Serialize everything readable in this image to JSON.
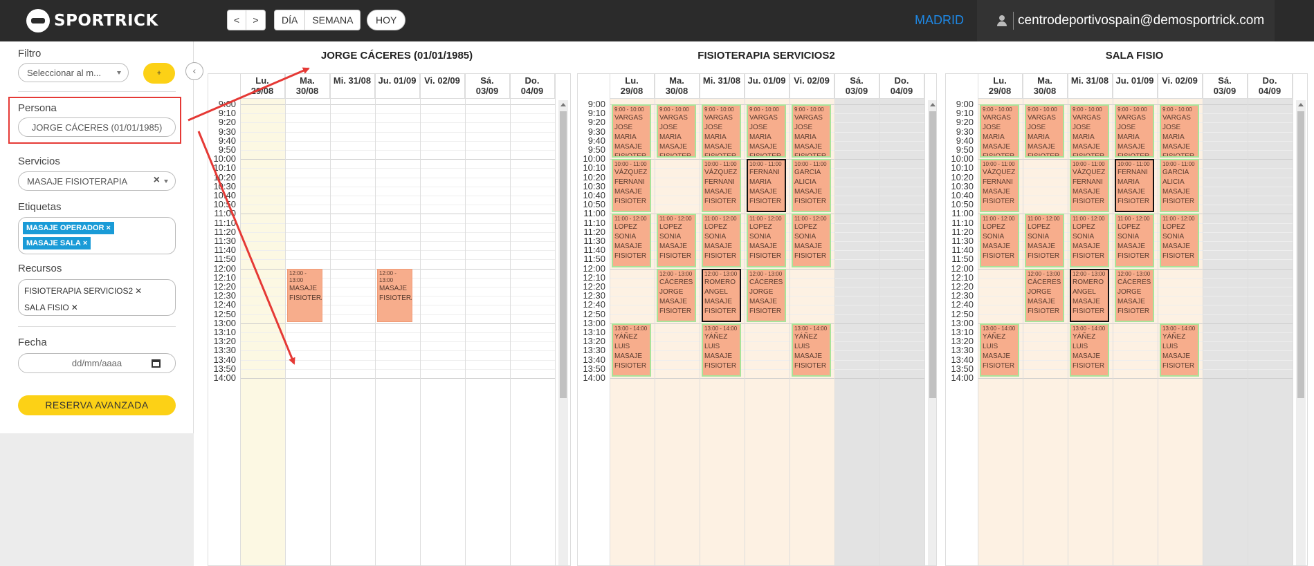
{
  "header": {
    "brand": "SPORTRICK",
    "prev_label": "<",
    "next_label": ">",
    "day_label": "DÍA",
    "week_label": "SEMANA",
    "today_label": "HOY",
    "city": "MADRID",
    "user_email": "centrodeportivospain@demosportrick.com"
  },
  "sidebar": {
    "filter_label": "Filtro",
    "filter_placeholder": "Seleccionar al m...",
    "add_label": "+",
    "persona_label": "Persona",
    "persona_value": "JORGE CÁCERES (01/01/1985)",
    "services_label": "Servicios",
    "services_value": "MASAJE FISIOTERAPIA",
    "tags_label": "Etiquetas",
    "tags": [
      "MASAJE OPERADOR",
      "MASAJE SALA"
    ],
    "resources_label": "Recursos",
    "resources": [
      "FISIOTERAPIA SERVICIOS2",
      "SALA FISIO"
    ],
    "date_label": "Fecha",
    "date_placeholder": "dd/mm/aaaa",
    "reserve_label": "RESERVA AVANZADA",
    "collapse_label": "‹"
  },
  "times": [
    "9:00",
    "9:10",
    "9:20",
    "9:30",
    "9:40",
    "9:50",
    "10:00",
    "10:10",
    "10:20",
    "10:30",
    "10:40",
    "10:50",
    "11:00",
    "11:10",
    "11:20",
    "11:30",
    "11:40",
    "11:50",
    "12:00",
    "12:10",
    "12:20",
    "12:30",
    "12:40",
    "12:50",
    "13:00",
    "13:10",
    "13:20",
    "13:30",
    "13:40",
    "13:50",
    "14:00"
  ],
  "calendars": [
    {
      "title": "JORGE CÁCERES (01/01/1985)",
      "days": [
        [
          "Lu.",
          "29/08"
        ],
        [
          "Ma.",
          "30/08"
        ],
        [
          "Mi. 31/08",
          ""
        ],
        [
          "Ju. 01/09",
          ""
        ],
        [
          "Vi. 02/09",
          ""
        ],
        [
          "Sá.",
          "03/09"
        ],
        [
          "Do.",
          "04/09"
        ]
      ],
      "events": [
        {
          "day": 1,
          "start": 18,
          "len": 6,
          "time": "12:00 - 13:00",
          "lines": [
            "MASAJE",
            "FISIOTERA"
          ],
          "style": ""
        },
        {
          "day": 3,
          "start": 18,
          "len": 6,
          "time": "12:00 - 13:00",
          "lines": [
            "MASAJE",
            "FISIOTERA"
          ],
          "style": ""
        }
      ]
    },
    {
      "title": "FISIOTERAPIA SERVICIOS2",
      "days": [
        [
          "Lu.",
          "29/08"
        ],
        [
          "Ma.",
          "30/08"
        ],
        [
          "Mi. 31/08",
          ""
        ],
        [
          "Ju. 01/09",
          ""
        ],
        [
          "Vi. 02/09",
          ""
        ],
        [
          "Sá.",
          "03/09"
        ],
        [
          "Do.",
          "04/09"
        ]
      ],
      "events": [
        {
          "day": 0,
          "start": 0,
          "len": 6,
          "time": "9:00 - 10:00",
          "lines": [
            "VARGAS",
            "JOSE",
            "MARIA",
            "MASAJE",
            "FISIOTER"
          ],
          "style": "green"
        },
        {
          "day": 1,
          "start": 0,
          "len": 6,
          "time": "9:00 - 10:00",
          "lines": [
            "VARGAS",
            "JOSE",
            "MARIA",
            "MASAJE",
            "FISIOTER"
          ],
          "style": "green"
        },
        {
          "day": 2,
          "start": 0,
          "len": 6,
          "time": "9:00 - 10:00",
          "lines": [
            "VARGAS",
            "JOSE",
            "MARIA",
            "MASAJE",
            "FISIOTER"
          ],
          "style": "green"
        },
        {
          "day": 3,
          "start": 0,
          "len": 6,
          "time": "9:00 - 10:00",
          "lines": [
            "VARGAS",
            "JOSE",
            "MARIA",
            "MASAJE",
            "FISIOTER"
          ],
          "style": "green"
        },
        {
          "day": 4,
          "start": 0,
          "len": 6,
          "time": "9:00 - 10:00",
          "lines": [
            "VARGAS",
            "JOSE",
            "MARIA",
            "MASAJE",
            "FISIOTER"
          ],
          "style": "green"
        },
        {
          "day": 0,
          "start": 6,
          "len": 6,
          "time": "10:00 - 11:00",
          "lines": [
            "VÁZQUEZ",
            "FERNANI",
            "MASAJE",
            "FISIOTER"
          ],
          "style": "green"
        },
        {
          "day": 2,
          "start": 6,
          "len": 6,
          "time": "10:00 - 11:00",
          "lines": [
            "VÁZQUEZ",
            "FERNANI",
            "MASAJE",
            "FISIOTER"
          ],
          "style": "green"
        },
        {
          "day": 3,
          "start": 6,
          "len": 6,
          "time": "10:00 - 11:00",
          "lines": [
            "FERNANI",
            "MARIA",
            "MASAJE",
            "FISIOTER"
          ],
          "style": "bold"
        },
        {
          "day": 4,
          "start": 6,
          "len": 6,
          "time": "10:00 - 11:00",
          "lines": [
            "GARCIA",
            "ALICIA",
            "MASAJE",
            "FISIOTER"
          ],
          "style": "green"
        },
        {
          "day": 0,
          "start": 12,
          "len": 6,
          "time": "11:00 - 12:00",
          "lines": [
            "LOPEZ",
            "SONIA",
            "MASAJE",
            "FISIOTER"
          ],
          "style": "green"
        },
        {
          "day": 1,
          "start": 12,
          "len": 6,
          "time": "11:00 - 12:00",
          "lines": [
            "LOPEZ",
            "SONIA",
            "MASAJE",
            "FISIOTER"
          ],
          "style": "green"
        },
        {
          "day": 2,
          "start": 12,
          "len": 6,
          "time": "11:00 - 12:00",
          "lines": [
            "LOPEZ",
            "SONIA",
            "MASAJE",
            "FISIOTER"
          ],
          "style": "green"
        },
        {
          "day": 3,
          "start": 12,
          "len": 6,
          "time": "11:00 - 12:00",
          "lines": [
            "LOPEZ",
            "SONIA",
            "MASAJE",
            "FISIOTER"
          ],
          "style": "green"
        },
        {
          "day": 4,
          "start": 12,
          "len": 6,
          "time": "11:00 - 12:00",
          "lines": [
            "LOPEZ",
            "SONIA",
            "MASAJE",
            "FISIOTER"
          ],
          "style": "green"
        },
        {
          "day": 1,
          "start": 18,
          "len": 6,
          "time": "12:00 - 13:00",
          "lines": [
            "CÁCERES",
            "JORGE",
            "MASAJE",
            "FISIOTER"
          ],
          "style": "green"
        },
        {
          "day": 2,
          "start": 18,
          "len": 6,
          "time": "12:00 - 13:00",
          "lines": [
            "ROMERO",
            "ANGEL",
            "MASAJE",
            "FISIOTER"
          ],
          "style": "bold"
        },
        {
          "day": 3,
          "start": 18,
          "len": 6,
          "time": "12:00 - 13:00",
          "lines": [
            "CÁCERES",
            "JORGE",
            "MASAJE",
            "FISIOTER"
          ],
          "style": "green"
        },
        {
          "day": 0,
          "start": 24,
          "len": 6,
          "time": "13:00 - 14:00",
          "lines": [
            "YÁÑEZ",
            "LUIS",
            "MASAJE",
            "FISIOTER"
          ],
          "style": "green"
        },
        {
          "day": 2,
          "start": 24,
          "len": 6,
          "time": "13:00 - 14:00",
          "lines": [
            "YÁÑEZ",
            "LUIS",
            "MASAJE",
            "FISIOTER"
          ],
          "style": "green"
        },
        {
          "day": 4,
          "start": 24,
          "len": 6,
          "time": "13:00 - 14:00",
          "lines": [
            "YÁÑEZ",
            "LUIS",
            "MASAJE",
            "FISIOTER"
          ],
          "style": "green"
        }
      ]
    },
    {
      "title": "SALA FISIO",
      "days": [
        [
          "Lu.",
          "29/08"
        ],
        [
          "Ma.",
          "30/08"
        ],
        [
          "Mi. 31/08",
          ""
        ],
        [
          "Ju. 01/09",
          ""
        ],
        [
          "Vi. 02/09",
          ""
        ],
        [
          "Sá.",
          "03/09"
        ],
        [
          "Do.",
          "04/09"
        ]
      ],
      "events": [
        {
          "day": 0,
          "start": 0,
          "len": 6,
          "time": "9:00 - 10:00",
          "lines": [
            "VARGAS",
            "JOSE",
            "MARIA",
            "MASAJE",
            "FISIOTER"
          ],
          "style": "green"
        },
        {
          "day": 1,
          "start": 0,
          "len": 6,
          "time": "9:00 - 10:00",
          "lines": [
            "VARGAS",
            "JOSE",
            "MARIA",
            "MASAJE",
            "FISIOTER"
          ],
          "style": "green"
        },
        {
          "day": 2,
          "start": 0,
          "len": 6,
          "time": "9:00 - 10:00",
          "lines": [
            "VARGAS",
            "JOSE",
            "MARIA",
            "MASAJE",
            "FISIOTER"
          ],
          "style": "green"
        },
        {
          "day": 3,
          "start": 0,
          "len": 6,
          "time": "9:00 - 10:00",
          "lines": [
            "VARGAS",
            "JOSE",
            "MARIA",
            "MASAJE",
            "FISIOTER"
          ],
          "style": "green"
        },
        {
          "day": 4,
          "start": 0,
          "len": 6,
          "time": "9:00 - 10:00",
          "lines": [
            "VARGAS",
            "JOSE",
            "MARIA",
            "MASAJE",
            "FISIOTER"
          ],
          "style": "green"
        },
        {
          "day": 0,
          "start": 6,
          "len": 6,
          "time": "10:00 - 11:00",
          "lines": [
            "VÁZQUEZ",
            "FERNANI",
            "MASAJE",
            "FISIOTER"
          ],
          "style": "green"
        },
        {
          "day": 2,
          "start": 6,
          "len": 6,
          "time": "10:00 - 11:00",
          "lines": [
            "VÁZQUEZ",
            "FERNANI",
            "MASAJE",
            "FISIOTER"
          ],
          "style": "green"
        },
        {
          "day": 3,
          "start": 6,
          "len": 6,
          "time": "10:00 - 11:00",
          "lines": [
            "FERNANI",
            "MARIA",
            "MASAJE",
            "FISIOTER"
          ],
          "style": "bold"
        },
        {
          "day": 4,
          "start": 6,
          "len": 6,
          "time": "10:00 - 11:00",
          "lines": [
            "GARCIA",
            "ALICIA",
            "MASAJE",
            "FISIOTER"
          ],
          "style": "green"
        },
        {
          "day": 0,
          "start": 12,
          "len": 6,
          "time": "11:00 - 12:00",
          "lines": [
            "LOPEZ",
            "SONIA",
            "MASAJE",
            "FISIOTER"
          ],
          "style": "green"
        },
        {
          "day": 1,
          "start": 12,
          "len": 6,
          "time": "11:00 - 12:00",
          "lines": [
            "LOPEZ",
            "SONIA",
            "MASAJE",
            "FISIOTER"
          ],
          "style": "green"
        },
        {
          "day": 2,
          "start": 12,
          "len": 6,
          "time": "11:00 - 12:00",
          "lines": [
            "LOPEZ",
            "SONIA",
            "MASAJE",
            "FISIOTER"
          ],
          "style": "green"
        },
        {
          "day": 3,
          "start": 12,
          "len": 6,
          "time": "11:00 - 12:00",
          "lines": [
            "LOPEZ",
            "SONIA",
            "MASAJE",
            "FISIOTER"
          ],
          "style": "green"
        },
        {
          "day": 4,
          "start": 12,
          "len": 6,
          "time": "11:00 - 12:00",
          "lines": [
            "LOPEZ",
            "SONIA",
            "MASAJE",
            "FISIOTER"
          ],
          "style": "green"
        },
        {
          "day": 1,
          "start": 18,
          "len": 6,
          "time": "12:00 - 13:00",
          "lines": [
            "CÁCERES",
            "JORGE",
            "MASAJE",
            "FISIOTER"
          ],
          "style": "green"
        },
        {
          "day": 2,
          "start": 18,
          "len": 6,
          "time": "12:00 - 13:00",
          "lines": [
            "ROMERO",
            "ANGEL",
            "MASAJE",
            "FISIOTER"
          ],
          "style": "bold"
        },
        {
          "day": 3,
          "start": 18,
          "len": 6,
          "time": "12:00 - 13:00",
          "lines": [
            "CÁCERES",
            "JORGE",
            "MASAJE",
            "FISIOTER"
          ],
          "style": "green"
        },
        {
          "day": 0,
          "start": 24,
          "len": 6,
          "time": "13:00 - 14:00",
          "lines": [
            "YÁÑEZ",
            "LUIS",
            "MASAJE",
            "FISIOTER"
          ],
          "style": "green"
        },
        {
          "day": 2,
          "start": 24,
          "len": 6,
          "time": "13:00 - 14:00",
          "lines": [
            "YÁÑEZ",
            "LUIS",
            "MASAJE",
            "FISIOTER"
          ],
          "style": "green"
        },
        {
          "day": 4,
          "start": 24,
          "len": 6,
          "time": "13:00 - 14:00",
          "lines": [
            "YÁÑEZ",
            "LUIS",
            "MASAJE",
            "FISIOTER"
          ],
          "style": "green"
        }
      ]
    }
  ],
  "colors": {
    "brand_yellow": "#fcd116",
    "event_fill": "#f7ad8c",
    "event_border_green": "#a9e39a",
    "annotation_red": "#e53935",
    "city_blue": "#1e88e5"
  }
}
